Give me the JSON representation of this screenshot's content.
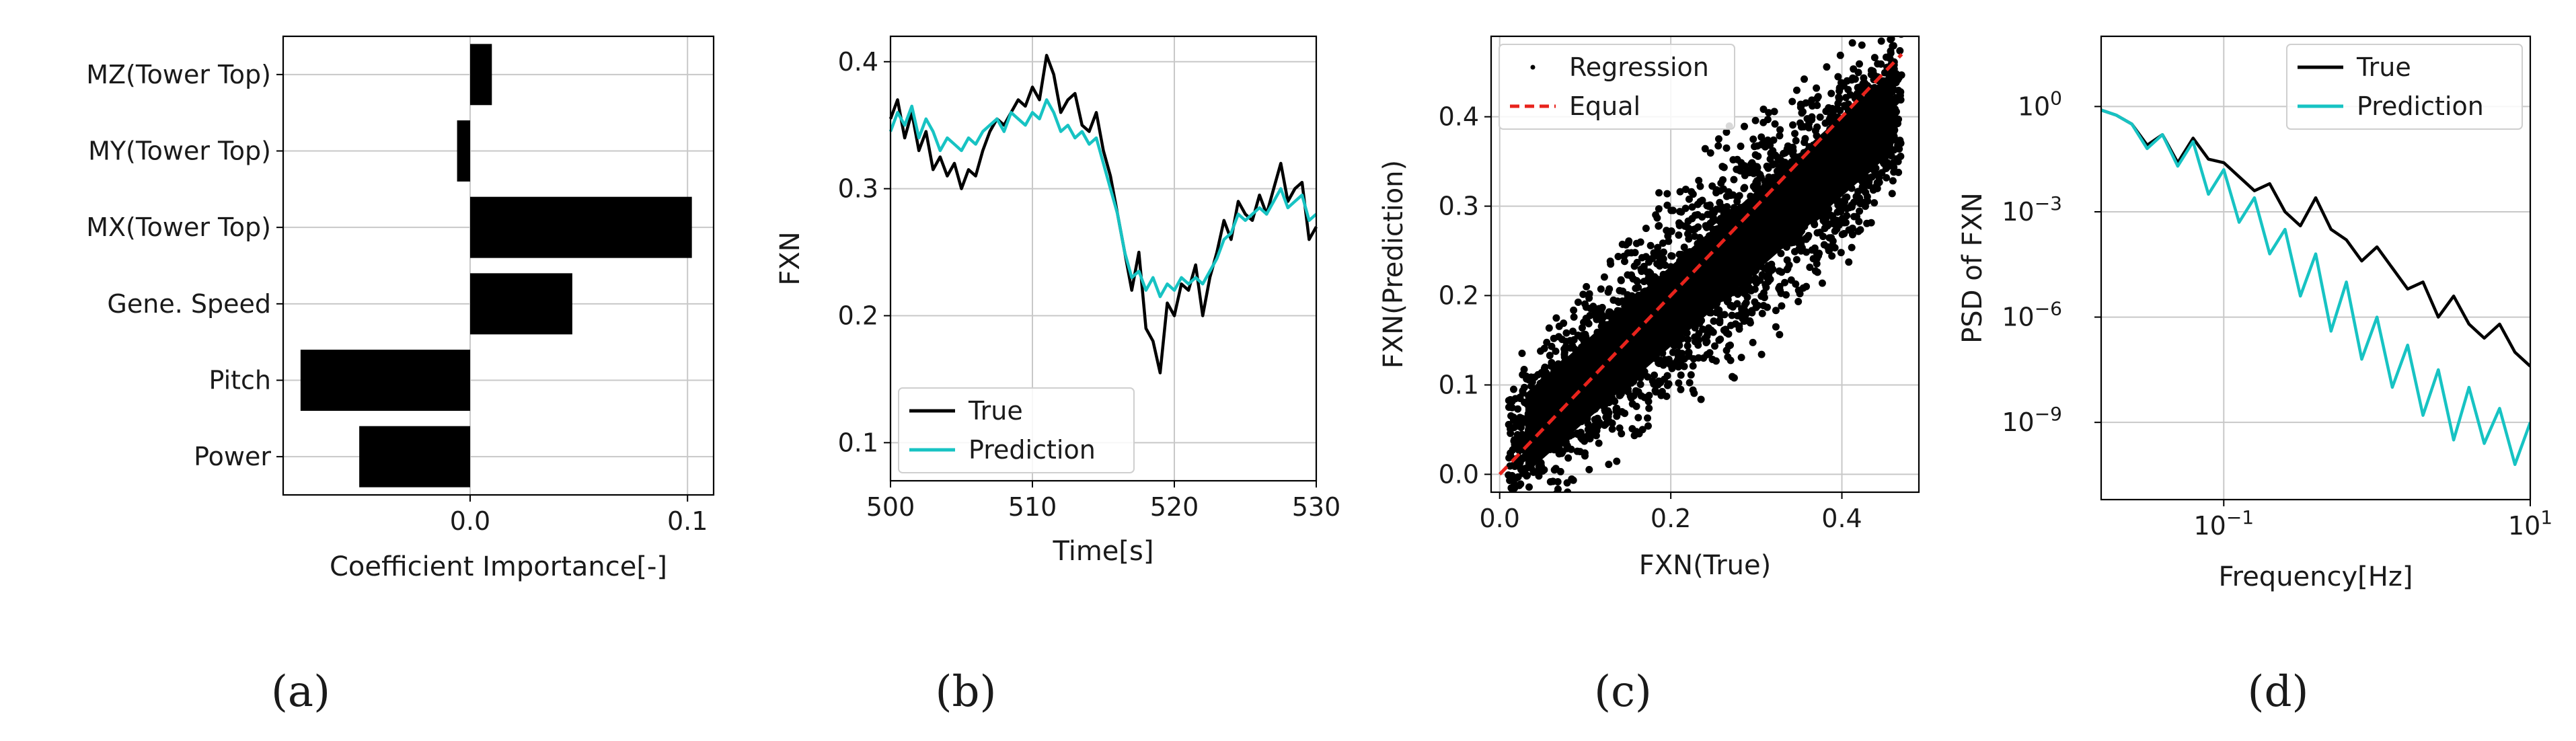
{
  "panels": [
    {
      "id": "a",
      "label": "(a)",
      "chart_data": {
        "type": "bar",
        "orientation": "horizontal",
        "title": "",
        "xlabel": "Coefficient Importance[-]",
        "ylabel": "",
        "categories": [
          "Power",
          "Pitch",
          "Gene. Speed",
          "MX(Tower Top)",
          "MY(Tower Top)",
          "MZ(Tower Top)"
        ],
        "values": [
          -0.051,
          -0.078,
          0.047,
          0.102,
          -0.006,
          0.01
        ],
        "xlim": [
          -0.086,
          0.112
        ],
        "xticks": [
          0.0,
          0.1
        ],
        "xtick_labels": [
          "0.0",
          "0.1"
        ],
        "grid": true,
        "bar_color": "#000000"
      }
    },
    {
      "id": "b",
      "label": "(b)",
      "chart_data": {
        "type": "line",
        "title": "",
        "xlabel": "Time[s]",
        "ylabel": "FXN",
        "xlim": [
          500,
          530
        ],
        "ylim": [
          0.07,
          0.42
        ],
        "xticks": [
          500,
          510,
          520,
          530
        ],
        "xtick_labels": [
          "500",
          "510",
          "520",
          "530"
        ],
        "yticks": [
          0.1,
          0.2,
          0.3,
          0.4
        ],
        "ytick_labels": [
          "0.1",
          "0.2",
          "0.3",
          "0.4"
        ],
        "grid": true,
        "legend": "lower-left",
        "series": [
          {
            "name": "True",
            "color": "#000000",
            "x": [
              500,
              500.5,
              501,
              501.5,
              502,
              502.5,
              503,
              503.5,
              504,
              504.5,
              505,
              505.5,
              506,
              506.5,
              507,
              507.5,
              508,
              508.5,
              509,
              509.5,
              510,
              510.5,
              511,
              511.5,
              512,
              512.5,
              513,
              513.5,
              514,
              514.5,
              515,
              515.5,
              516,
              516.5,
              517,
              517.5,
              518,
              518.5,
              519,
              519.5,
              520,
              520.5,
              521,
              521.5,
              522,
              522.5,
              523,
              523.5,
              524,
              524.5,
              525,
              525.5,
              526,
              526.5,
              527,
              527.5,
              528,
              528.5,
              529,
              529.5,
              530
            ],
            "y": [
              0.355,
              0.37,
              0.34,
              0.36,
              0.33,
              0.345,
              0.315,
              0.325,
              0.31,
              0.32,
              0.3,
              0.315,
              0.31,
              0.33,
              0.345,
              0.355,
              0.35,
              0.36,
              0.37,
              0.365,
              0.38,
              0.37,
              0.405,
              0.39,
              0.36,
              0.37,
              0.375,
              0.35,
              0.345,
              0.36,
              0.33,
              0.31,
              0.28,
              0.25,
              0.22,
              0.25,
              0.19,
              0.18,
              0.155,
              0.21,
              0.2,
              0.225,
              0.22,
              0.24,
              0.2,
              0.23,
              0.25,
              0.275,
              0.26,
              0.29,
              0.28,
              0.275,
              0.295,
              0.28,
              0.3,
              0.32,
              0.29,
              0.3,
              0.305,
              0.26,
              0.27
            ]
          },
          {
            "name": "Prediction",
            "color": "#17c3c3",
            "x": [
              500,
              500.5,
              501,
              501.5,
              502,
              502.5,
              503,
              503.5,
              504,
              504.5,
              505,
              505.5,
              506,
              506.5,
              507,
              507.5,
              508,
              508.5,
              509,
              509.5,
              510,
              510.5,
              511,
              511.5,
              512,
              512.5,
              513,
              513.5,
              514,
              514.5,
              515,
              515.5,
              516,
              516.5,
              517,
              517.5,
              518,
              518.5,
              519,
              519.5,
              520,
              520.5,
              521,
              521.5,
              522,
              522.5,
              523,
              523.5,
              524,
              524.5,
              525,
              525.5,
              526,
              526.5,
              527,
              527.5,
              528,
              528.5,
              529,
              529.5,
              530
            ],
            "y": [
              0.345,
              0.36,
              0.35,
              0.365,
              0.34,
              0.355,
              0.345,
              0.33,
              0.34,
              0.335,
              0.33,
              0.34,
              0.335,
              0.345,
              0.35,
              0.355,
              0.345,
              0.36,
              0.355,
              0.35,
              0.36,
              0.355,
              0.37,
              0.36,
              0.345,
              0.35,
              0.34,
              0.345,
              0.335,
              0.34,
              0.32,
              0.3,
              0.28,
              0.25,
              0.23,
              0.235,
              0.22,
              0.23,
              0.215,
              0.225,
              0.22,
              0.23,
              0.225,
              0.23,
              0.225,
              0.235,
              0.245,
              0.26,
              0.265,
              0.28,
              0.275,
              0.28,
              0.285,
              0.28,
              0.29,
              0.3,
              0.285,
              0.29,
              0.295,
              0.275,
              0.28
            ]
          }
        ]
      }
    },
    {
      "id": "c",
      "label": "(c)",
      "chart_data": {
        "type": "scatter",
        "title": "",
        "xlabel": "FXN(True)",
        "ylabel": "FXN(Prediction)",
        "xlim": [
          -0.01,
          0.49
        ],
        "ylim": [
          -0.02,
          0.49
        ],
        "xticks": [
          0.0,
          0.2,
          0.4
        ],
        "xtick_labels": [
          "0.0",
          "0.2",
          "0.4"
        ],
        "yticks": [
          0.0,
          0.1,
          0.2,
          0.3,
          0.4
        ],
        "ytick_labels": [
          "0.0",
          "0.1",
          "0.2",
          "0.3",
          "0.4"
        ],
        "grid": true,
        "legend": "top-left",
        "series": [
          {
            "name": "Regression",
            "color": "#000000",
            "kind": "points",
            "description_points": {
              "x_min": 0.01,
              "x_max": 0.47,
              "slope": 0.84,
              "intercept": 0.02
            }
          },
          {
            "name": "Equal",
            "color": "#e8231c",
            "kind": "dashed-line",
            "x": [
              0.0,
              0.47
            ],
            "y": [
              0.0,
              0.47
            ]
          }
        ]
      }
    },
    {
      "id": "d",
      "label": "(d)",
      "chart_data": {
        "type": "line",
        "scale": "log-log",
        "title": "",
        "xlabel": "Frequency[Hz]",
        "ylabel": "PSD of FXN",
        "xlim_log10": [
          -1.8,
          1.0
        ],
        "ylim_log10": [
          -11.2,
          2.0
        ],
        "xticks_log10": [
          -1,
          1
        ],
        "xtick_labels": [
          "10",
          "10"
        ],
        "xtick_exponents": [
          "−1",
          "1"
        ],
        "yticks_log10": [
          0,
          -3,
          -6,
          -9
        ],
        "ytick_labels": [
          "10",
          "10",
          "10",
          "10"
        ],
        "ytick_exponents": [
          "0",
          "−3",
          "−6",
          "−9"
        ],
        "grid": true,
        "legend": "top-right",
        "series": [
          {
            "name": "True",
            "color": "#000000",
            "log10_x": [
              -1.8,
              -1.7,
              -1.6,
              -1.5,
              -1.4,
              -1.3,
              -1.2,
              -1.1,
              -1.0,
              -0.9,
              -0.8,
              -0.7,
              -0.6,
              -0.5,
              -0.4,
              -0.3,
              -0.2,
              -0.1,
              0.0,
              0.1,
              0.2,
              0.3,
              0.4,
              0.5,
              0.6,
              0.7,
              0.8,
              0.9,
              1.0
            ],
            "log10_y": [
              -0.1,
              -0.25,
              -0.5,
              -1.1,
              -0.8,
              -1.6,
              -0.9,
              -1.5,
              -1.6,
              -2.0,
              -2.4,
              -2.2,
              -3.0,
              -3.4,
              -2.6,
              -3.5,
              -3.8,
              -4.4,
              -4.0,
              -4.6,
              -5.2,
              -5.0,
              -6.0,
              -5.4,
              -6.2,
              -6.6,
              -6.2,
              -7.0,
              -7.4
            ]
          },
          {
            "name": "Prediction",
            "color": "#17c3c3",
            "log10_x": [
              -1.8,
              -1.7,
              -1.6,
              -1.5,
              -1.4,
              -1.3,
              -1.2,
              -1.1,
              -1.0,
              -0.9,
              -0.8,
              -0.7,
              -0.6,
              -0.5,
              -0.4,
              -0.3,
              -0.2,
              -0.1,
              0.0,
              0.1,
              0.2,
              0.3,
              0.4,
              0.5,
              0.6,
              0.7,
              0.8,
              0.9,
              1.0
            ],
            "log10_y": [
              -0.1,
              -0.25,
              -0.5,
              -1.2,
              -0.8,
              -1.7,
              -1.0,
              -2.5,
              -1.8,
              -3.3,
              -2.6,
              -4.2,
              -3.5,
              -5.4,
              -4.2,
              -6.4,
              -5.0,
              -7.2,
              -6.0,
              -8.0,
              -6.8,
              -8.8,
              -7.5,
              -9.5,
              -8.0,
              -9.6,
              -8.6,
              -10.2,
              -9.0
            ]
          }
        ]
      }
    }
  ]
}
